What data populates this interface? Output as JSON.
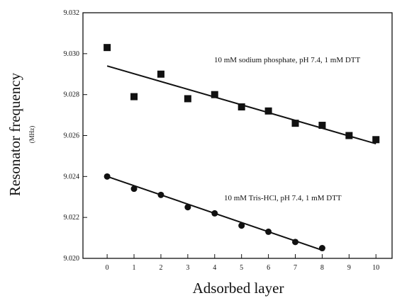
{
  "chart_data": {
    "type": "scatter",
    "title": "",
    "xlabel": "Adsorbed layer",
    "ylabel": "Resonator frequency",
    "yunit": "(MHz)",
    "xlim": [
      -0.9,
      10.6
    ],
    "ylim": [
      9.02,
      9.032
    ],
    "xticks": [
      0,
      1,
      2,
      3,
      4,
      5,
      6,
      7,
      8,
      9,
      10
    ],
    "xtick_labels": [
      "0",
      "1",
      "2",
      "3",
      "4",
      "5",
      "6",
      "7",
      "8",
      "9",
      "10"
    ],
    "yticks": [
      9.02,
      9.022,
      9.024,
      9.026,
      9.028,
      9.03,
      9.032
    ],
    "ytick_labels": [
      "9.020",
      "9.022",
      "9.024",
      "9.026",
      "9.028",
      "9.030",
      "9.032"
    ],
    "grid": false,
    "legend": "none",
    "series": [
      {
        "label": "10 mM sodium phosphate, pH 7.4, 1 mM DTT",
        "marker": "square",
        "x": [
          0,
          1,
          2,
          3,
          4,
          5,
          6,
          7,
          8,
          9,
          10
        ],
        "y": [
          9.0303,
          9.0279,
          9.029,
          9.0278,
          9.028,
          9.0274,
          9.0272,
          9.0266,
          9.0265,
          9.026,
          9.0258
        ],
        "fit": [
          9.0294,
          9.0256
        ]
      },
      {
        "label": "10 mM Tris-HCl, pH 7.4, 1 mM DTT",
        "marker": "circle",
        "x": [
          0,
          1,
          2,
          3,
          4,
          5,
          6,
          7,
          8
        ],
        "y": [
          9.024,
          9.0234,
          9.0231,
          9.0225,
          9.0222,
          9.0216,
          9.0213,
          9.0208,
          9.0205
        ],
        "fit": [
          9.024,
          9.0204
        ]
      }
    ]
  }
}
